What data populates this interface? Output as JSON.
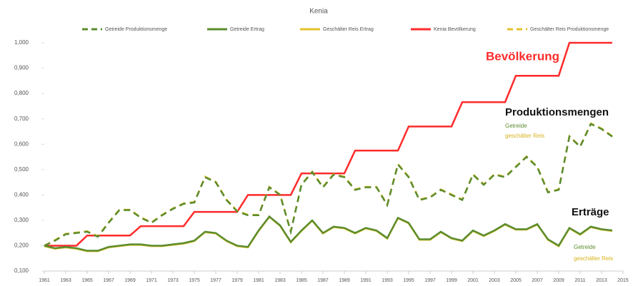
{
  "chart_data": {
    "type": "line",
    "title": "Kenia",
    "x": [
      1961,
      1962,
      1963,
      1964,
      1965,
      1966,
      1967,
      1968,
      1969,
      1970,
      1971,
      1972,
      1973,
      1974,
      1975,
      1976,
      1977,
      1978,
      1979,
      1980,
      1981,
      1982,
      1983,
      1984,
      1985,
      1986,
      1987,
      1988,
      1989,
      1990,
      1991,
      1992,
      1993,
      1994,
      1995,
      1996,
      1997,
      1998,
      1999,
      2000,
      2001,
      2002,
      2003,
      2004,
      2005,
      2006,
      2007,
      2008,
      2009,
      2010,
      2011,
      2012,
      2013,
      2014
    ],
    "series": [
      {
        "name": "Getreide Produktionsmenge",
        "color": "#5b8c2f",
        "dashed": true,
        "values": [
          0.2,
          0.22,
          0.245,
          0.25,
          0.255,
          0.235,
          0.29,
          0.34,
          0.34,
          0.31,
          0.29,
          0.32,
          0.345,
          0.365,
          0.37,
          0.47,
          0.45,
          0.38,
          0.335,
          0.32,
          0.32,
          0.43,
          0.4,
          0.255,
          0.44,
          0.49,
          0.43,
          0.48,
          0.47,
          0.42,
          0.43,
          0.43,
          0.36,
          0.52,
          0.47,
          0.38,
          0.39,
          0.42,
          0.4,
          0.38,
          0.48,
          0.44,
          0.48,
          0.47,
          0.51,
          0.55,
          0.51,
          0.41,
          0.42,
          0.63,
          0.59,
          0.68,
          0.66,
          0.63
        ]
      },
      {
        "name": "Getreide Ertrag",
        "color": "#5b8c2f",
        "dashed": false,
        "values": [
          0.2,
          0.19,
          0.195,
          0.19,
          0.18,
          0.18,
          0.195,
          0.2,
          0.205,
          0.205,
          0.2,
          0.2,
          0.205,
          0.21,
          0.22,
          0.255,
          0.25,
          0.22,
          0.2,
          0.195,
          0.26,
          0.315,
          0.28,
          0.215,
          0.26,
          0.3,
          0.25,
          0.275,
          0.27,
          0.25,
          0.27,
          0.26,
          0.23,
          0.31,
          0.29,
          0.225,
          0.225,
          0.255,
          0.23,
          0.22,
          0.26,
          0.24,
          0.26,
          0.285,
          0.265,
          0.265,
          0.285,
          0.225,
          0.2,
          0.27,
          0.245,
          0.275,
          0.265,
          0.26
        ]
      },
      {
        "name": "Geschälter Reis Ertrag",
        "color": "#e3c12b",
        "dashed": false,
        "values": [
          0.198,
          0.188,
          0.193,
          0.188,
          0.178,
          0.178,
          0.193,
          0.198,
          0.203,
          0.203,
          0.198,
          0.198,
          0.203,
          0.208,
          0.218,
          0.253,
          0.248,
          0.218,
          0.198,
          0.193,
          0.258,
          0.313,
          0.278,
          0.213,
          0.258,
          0.298,
          0.248,
          0.273,
          0.268,
          0.248,
          0.268,
          0.258,
          0.228,
          0.308,
          0.288,
          0.223,
          0.223,
          0.253,
          0.228,
          0.218,
          0.258,
          0.238,
          0.258,
          0.283,
          0.263,
          0.263,
          0.283,
          0.223,
          0.198,
          0.268,
          0.243,
          0.273,
          0.263,
          0.258
        ]
      },
      {
        "name": "Kenia Bevölkerung",
        "color": "#ff2b2b",
        "dashed": false,
        "values": [
          0.2,
          0.2,
          0.2,
          0.2,
          0.24,
          0.24,
          0.24,
          0.24,
          0.24,
          0.277,
          0.277,
          0.277,
          0.277,
          0.277,
          0.333,
          0.333,
          0.333,
          0.333,
          0.333,
          0.4,
          0.4,
          0.4,
          0.4,
          0.4,
          0.485,
          0.485,
          0.485,
          0.485,
          0.485,
          0.575,
          0.575,
          0.575,
          0.575,
          0.575,
          0.67,
          0.67,
          0.67,
          0.67,
          0.67,
          0.766,
          0.766,
          0.766,
          0.766,
          0.766,
          0.87,
          0.87,
          0.87,
          0.87,
          0.87,
          1.0,
          1.0,
          1.0,
          1.0,
          1.0
        ]
      },
      {
        "name": "Geschälter Reis Produktionsmenge",
        "color": "#e3c12b",
        "dashed": true,
        "values": [
          0.2,
          0.222,
          0.247,
          0.252,
          0.257,
          0.237,
          0.292,
          0.342,
          0.342,
          0.312,
          0.292,
          0.322,
          0.347,
          0.367,
          0.372,
          0.472,
          0.452,
          0.382,
          0.337,
          0.322,
          0.322,
          0.432,
          0.402,
          0.257,
          0.442,
          0.492,
          0.432,
          0.482,
          0.472,
          0.422,
          0.432,
          0.432,
          0.362,
          0.522,
          0.472,
          0.382,
          0.392,
          0.422,
          0.402,
          0.382,
          0.482,
          0.442,
          0.482,
          0.472,
          0.512,
          0.552,
          0.512,
          0.412,
          0.422,
          0.632,
          0.592,
          0.682,
          0.662,
          0.632
        ]
      }
    ],
    "annotations": [
      {
        "text": "Bevölkerung",
        "color": "#ff2b2b"
      },
      {
        "text": "Produktionsmengen",
        "color": "#111111"
      },
      {
        "text": "Getreide",
        "color": "#5b8c2f"
      },
      {
        "text": "geschälter Reis",
        "color": "#d6b21c"
      },
      {
        "text": "Erträge",
        "color": "#111111"
      },
      {
        "text": "Getreide",
        "color": "#5b8c2f"
      },
      {
        "text": "geschälter Reis",
        "color": "#d6b21c"
      }
    ],
    "xlim": [
      1961,
      2015
    ],
    "xticks": [
      1961,
      1963,
      1965,
      1967,
      1969,
      1971,
      1973,
      1975,
      1977,
      1979,
      1981,
      1983,
      1985,
      1987,
      1989,
      1991,
      1993,
      1995,
      1997,
      1999,
      2001,
      2003,
      2005,
      2007,
      2009,
      2011,
      2013,
      2015
    ],
    "ylim": [
      0.1,
      1.0
    ],
    "yticks": [
      {
        "value": 0.1,
        "label": "0,100"
      },
      {
        "value": 0.2,
        "label": "0,200"
      },
      {
        "value": 0.3,
        "label": "0,300"
      },
      {
        "value": 0.4,
        "label": "0,400"
      },
      {
        "value": 0.5,
        "label": "0,500"
      },
      {
        "value": 0.6,
        "label": "0,600"
      },
      {
        "value": 0.7,
        "label": "0,700"
      },
      {
        "value": 0.8,
        "label": "0,800"
      },
      {
        "value": 0.9,
        "label": "0,900"
      },
      {
        "value": 1.0,
        "label": "1,000"
      }
    ]
  }
}
